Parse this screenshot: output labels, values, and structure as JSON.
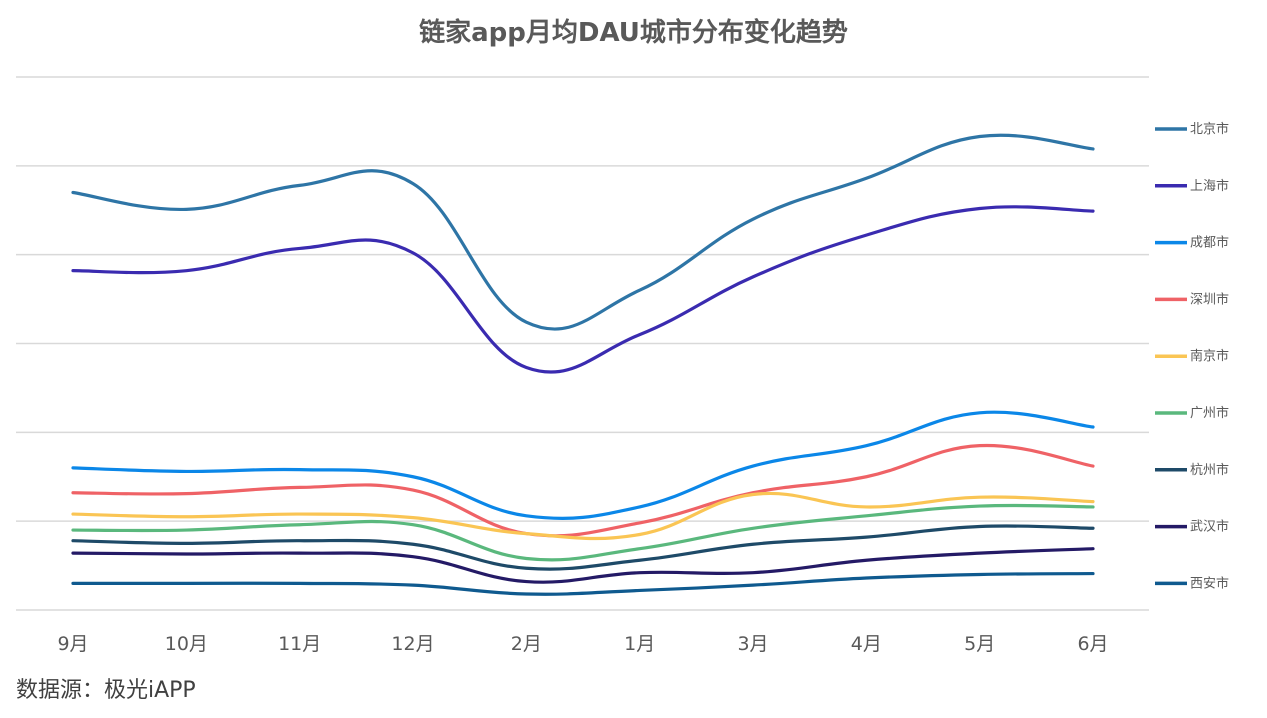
{
  "chart_data": {
    "type": "line",
    "title": "链家app月均DAU城市分布变化趋势",
    "xlabel": "",
    "ylabel": "",
    "categories": [
      "9月",
      "10月",
      "11月",
      "12月",
      "2月",
      "1月",
      "3月",
      "4月",
      "5月",
      "6月"
    ],
    "ylim": [
      0,
      6
    ],
    "grid": true,
    "y_axis_labels": false,
    "legend_position": "right",
    "series": [
      {
        "name": "北京市",
        "color": "#2E75A6",
        "values": [
          4.7,
          4.51,
          4.78,
          4.8,
          3.24,
          3.6,
          4.4,
          4.86,
          5.33,
          5.19
        ]
      },
      {
        "name": "上海市",
        "color": "#3A2BB0",
        "values": [
          3.82,
          3.82,
          4.07,
          4.02,
          2.73,
          3.1,
          3.75,
          4.22,
          4.52,
          4.49
        ]
      },
      {
        "name": "成都市",
        "color": "#0B87E8",
        "values": [
          1.6,
          1.56,
          1.58,
          1.5,
          1.06,
          1.16,
          1.62,
          1.85,
          2.22,
          2.06
        ]
      },
      {
        "name": "深圳市",
        "color": "#EF6266",
        "values": [
          1.32,
          1.31,
          1.38,
          1.35,
          0.86,
          0.98,
          1.32,
          1.5,
          1.85,
          1.62
        ]
      },
      {
        "name": "南京市",
        "color": "#FAC554",
        "values": [
          1.08,
          1.05,
          1.08,
          1.04,
          0.86,
          0.85,
          1.3,
          1.16,
          1.27,
          1.22
        ]
      },
      {
        "name": "广州市",
        "color": "#5AB87D",
        "values": [
          0.9,
          0.9,
          0.96,
          0.96,
          0.58,
          0.69,
          0.92,
          1.06,
          1.17,
          1.16
        ]
      },
      {
        "name": "杭州市",
        "color": "#1E4A68",
        "values": [
          0.78,
          0.75,
          0.78,
          0.74,
          0.47,
          0.56,
          0.74,
          0.82,
          0.94,
          0.92
        ]
      },
      {
        "name": "武汉市",
        "color": "#241A66",
        "values": [
          0.64,
          0.63,
          0.64,
          0.6,
          0.32,
          0.42,
          0.42,
          0.56,
          0.64,
          0.69
        ]
      },
      {
        "name": "西安市",
        "color": "#0F5A8F",
        "values": [
          0.3,
          0.3,
          0.3,
          0.28,
          0.18,
          0.22,
          0.28,
          0.36,
          0.4,
          0.41
        ]
      }
    ]
  },
  "source": "数据源：极光iAPP"
}
